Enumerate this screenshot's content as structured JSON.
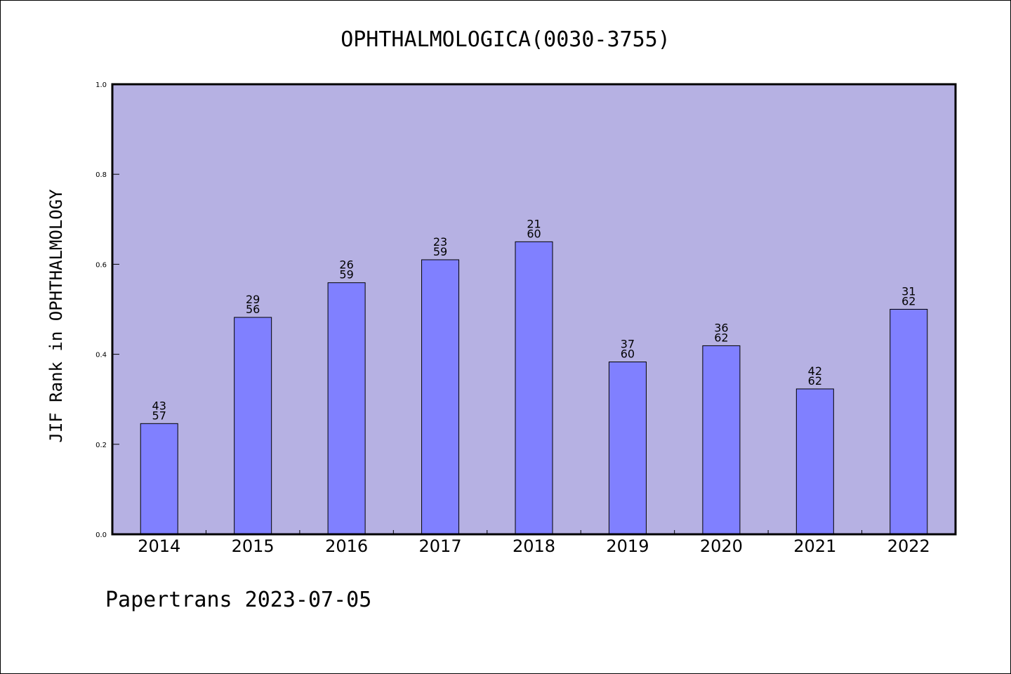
{
  "chart_data": {
    "type": "bar",
    "title": "OPHTHALMOLOGICA(0030-3755)",
    "ylabel": "JIF Rank in OPHTHALMOLOGY",
    "xlabel": "",
    "ylim": [
      0,
      1.0
    ],
    "yticks": [
      "0.0",
      "0.2",
      "0.4",
      "0.6",
      "0.8",
      "1.0"
    ],
    "categories": [
      "2014",
      "2015",
      "2016",
      "2017",
      "2018",
      "2019",
      "2020",
      "2021",
      "2022"
    ],
    "values": [
      0.246,
      0.482,
      0.559,
      0.61,
      0.65,
      0.383,
      0.419,
      0.323,
      0.5
    ],
    "rank_labels": [
      [
        "43",
        "57"
      ],
      [
        "29",
        "56"
      ],
      [
        "26",
        "59"
      ],
      [
        "23",
        "59"
      ],
      [
        "21",
        "60"
      ],
      [
        "37",
        "60"
      ],
      [
        "36",
        "62"
      ],
      [
        "42",
        "62"
      ],
      [
        "31",
        "62"
      ]
    ],
    "grid": false,
    "colors": {
      "plot_bg": "#b6b1e3",
      "bar": "#8080ff",
      "bar_edge": "#000000"
    }
  },
  "footer": "Papertrans 2023-07-05"
}
